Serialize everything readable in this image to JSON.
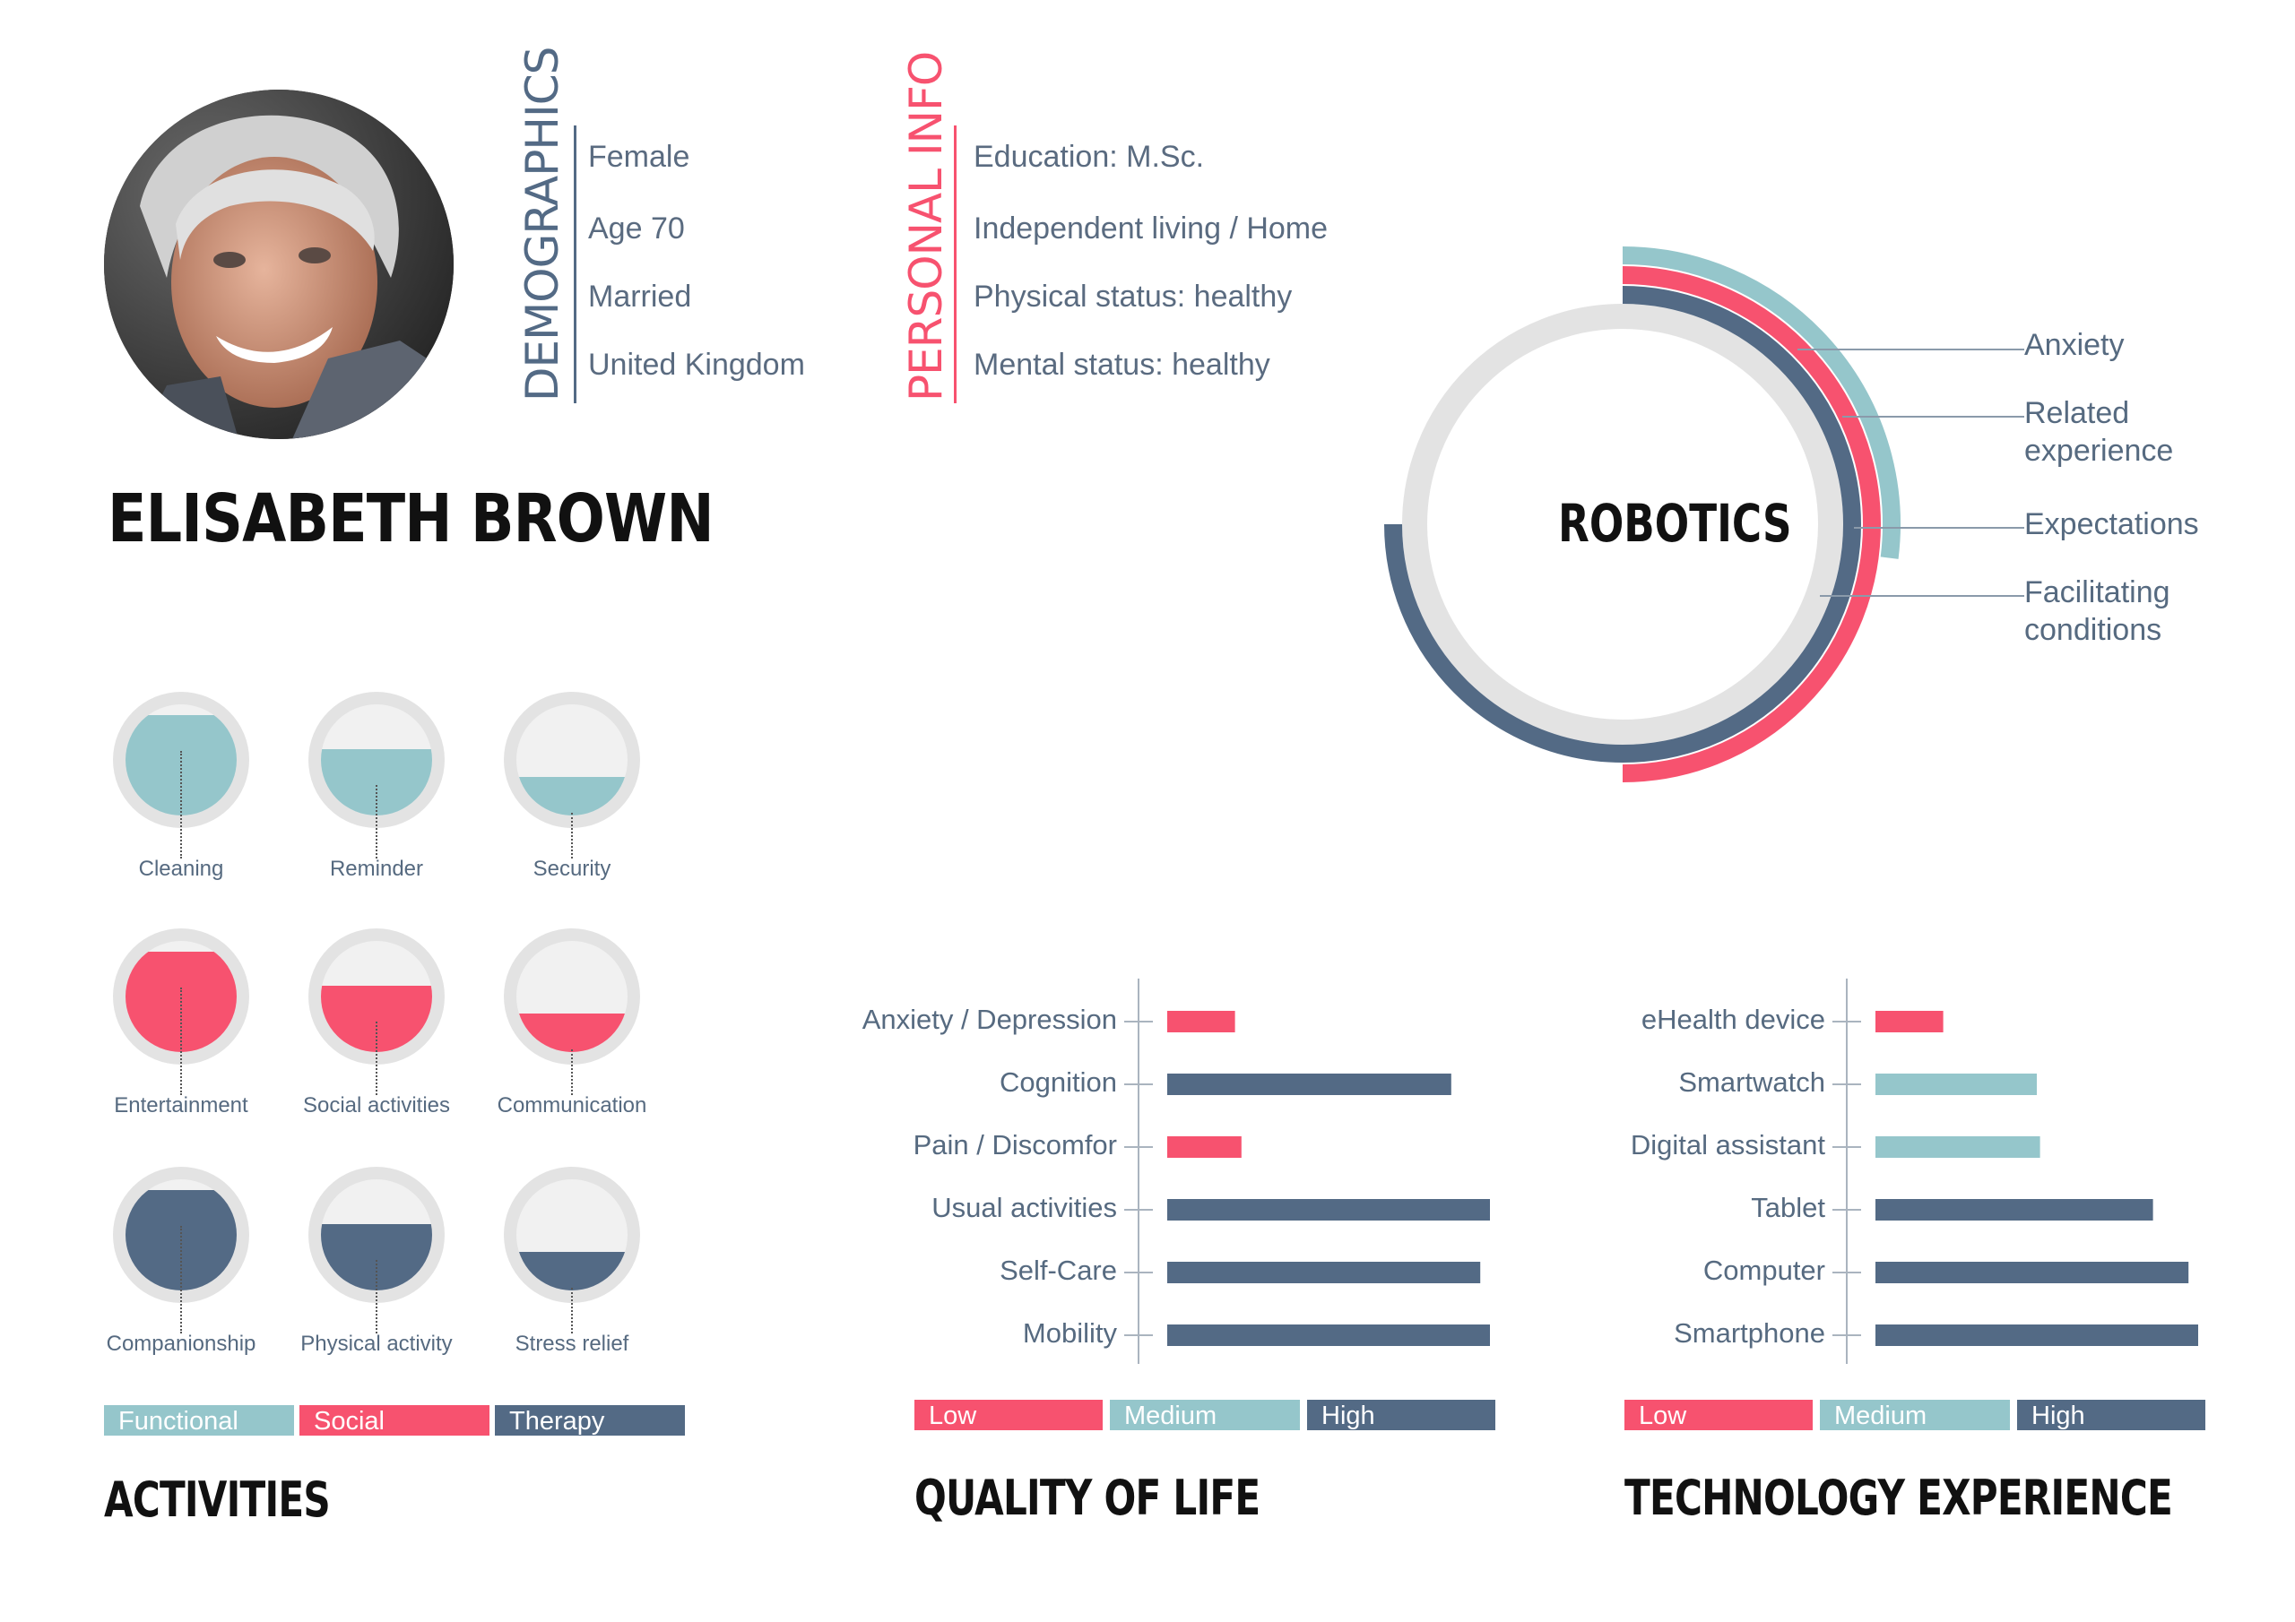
{
  "profile": {
    "name": "ELISABETH BROWN"
  },
  "demographics": {
    "heading": "DEMOGRAPHICS",
    "items": [
      "Female",
      "Age 70",
      "Married",
      "United Kingdom"
    ]
  },
  "personal_info": {
    "heading": "PERSONAL INFO",
    "items": [
      "Education: M.Sc.",
      "Independent living / Home",
      "Physical status: healthy",
      "Mental status: healthy"
    ]
  },
  "robotics": {
    "center_label": "ROBOTICS",
    "labels": [
      "Anxiety",
      "Related\nexperience",
      "Expectations",
      "Facilitating\nconditions"
    ],
    "arcs": [
      {
        "label": "Anxiety",
        "color": "#95c6cb",
        "fraction": 0.27
      },
      {
        "label": "Related experience",
        "color": "#f7526f",
        "fraction": 0.5
      },
      {
        "label": "Expectations",
        "color": "#536a85",
        "fraction": 0.75
      }
    ]
  },
  "activities": {
    "title": "ACTIVITIES",
    "items": [
      {
        "label": "Cleaning",
        "level": 0.9,
        "category": "Functional"
      },
      {
        "label": "Reminder",
        "level": 0.6,
        "category": "Functional"
      },
      {
        "label": "Security",
        "level": 0.35,
        "category": "Functional"
      },
      {
        "label": "Entertainment",
        "level": 0.9,
        "category": "Social"
      },
      {
        "label": "Social activities",
        "level": 0.6,
        "category": "Social"
      },
      {
        "label": "Communication",
        "level": 0.35,
        "category": "Social"
      },
      {
        "label": "Companionship",
        "level": 0.9,
        "category": "Therapy"
      },
      {
        "label": "Physical activity",
        "level": 0.6,
        "category": "Therapy"
      },
      {
        "label": "Stress relief",
        "level": 0.35,
        "category": "Therapy"
      }
    ],
    "legend": [
      {
        "label": "Functional",
        "color": "#95c6cb"
      },
      {
        "label": "Social",
        "color": "#f7526f"
      },
      {
        "label": "Therapy",
        "color": "#536a85"
      }
    ]
  },
  "chart_data": [
    {
      "type": "bar",
      "orientation": "horizontal",
      "title": "QUALITY OF LIFE",
      "categories": [
        "Anxiety / Depression",
        "Cognition",
        "Pain / Discomfor",
        "Usual activities",
        "Self-Care",
        "Mobility"
      ],
      "values": [
        0.21,
        0.88,
        0.23,
        1.0,
        0.97,
        1.0
      ],
      "levels": [
        "Low",
        "High",
        "Low",
        "High",
        "High",
        "High"
      ],
      "xlim": [
        0,
        1
      ],
      "legend": [
        {
          "label": "Low",
          "color": "#f7526f"
        },
        {
          "label": "Medium",
          "color": "#95c6cb"
        },
        {
          "label": "High",
          "color": "#536a85"
        }
      ]
    },
    {
      "type": "bar",
      "orientation": "horizontal",
      "title": "TECHNOLOGY EXPERIENCE",
      "categories": [
        "eHealth device",
        "Smartwatch",
        "Digital assistant",
        "Tablet",
        "Computer",
        "Smartphone"
      ],
      "values": [
        0.21,
        0.5,
        0.51,
        0.86,
        0.97,
        1.0
      ],
      "levels": [
        "Low",
        "Medium",
        "Medium",
        "High",
        "High",
        "High"
      ],
      "xlim": [
        0,
        1
      ],
      "legend": [
        {
          "label": "Low",
          "color": "#f7526f"
        },
        {
          "label": "Medium",
          "color": "#95c6cb"
        },
        {
          "label": "High",
          "color": "#536a85"
        }
      ]
    }
  ]
}
